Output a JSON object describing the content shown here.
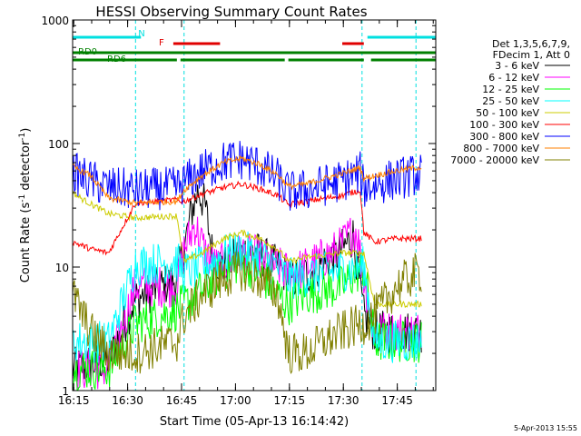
{
  "chart_data": {
    "type": "line",
    "title": "HESSI Observing Summary Count Rates",
    "xlabel": "Start Time (05-Apr-13 16:14:42)",
    "ylabel_main": "Count Rate (s",
    "ylabel_sup1": "-1",
    "ylabel_mid": " detector",
    "ylabel_sup2": "-1",
    "ylabel_end": ")",
    "y_scale": "log",
    "ylim": [
      1,
      1000
    ],
    "xlim_minutes": [
      0,
      101
    ],
    "x_tick_labels": [
      "16:15",
      "16:30",
      "16:45",
      "17:00",
      "17:15",
      "17:30",
      "17:45"
    ],
    "x_tick_minutes": [
      0.3,
      15.3,
      30.3,
      45.3,
      60.3,
      75.3,
      90.3
    ],
    "y_tick_labels": [
      "1",
      "10",
      "100",
      "1000"
    ],
    "y_tick_values": [
      1,
      10,
      100,
      1000
    ],
    "footer_date": "5-Apr-2013 15:55",
    "legend": {
      "header_line1": "Det 1,3,5,6,7,9,",
      "header_line2": "FDecim 1, Att 0",
      "placement": "right"
    },
    "flags": {
      "saa": {
        "label": "N",
        "color": "#00e0e0",
        "intervals": [
          [
            0,
            19
          ],
          [
            82,
            101
          ]
        ]
      },
      "flare": {
        "label": "F",
        "color": "#e00000",
        "intervals": [
          [
            28,
            41
          ],
          [
            75,
            81
          ]
        ]
      },
      "rd0": {
        "label": "RD0",
        "color": "#008000",
        "intervals": [
          [
            0,
            101
          ]
        ]
      },
      "rd6": {
        "label": "RD6",
        "color": "#008000",
        "intervals": [
          [
            0,
            29
          ],
          [
            30,
            59
          ],
          [
            60,
            81
          ],
          [
            83,
            101
          ]
        ]
      }
    },
    "vertical_markers": [
      {
        "minute": 17.5,
        "color": "#00e0e0"
      },
      {
        "minute": 31.0,
        "color": "#00e0e0"
      },
      {
        "minute": 80.5,
        "color": "#00e0e0"
      },
      {
        "minute": 95.5,
        "color": "#00e0e0"
      }
    ],
    "series": [
      {
        "name": "3 - 6 keV",
        "color": "#000000",
        "x": [
          0,
          10,
          17.5,
          29,
          31,
          33,
          35,
          37,
          39,
          42,
          45,
          50,
          55,
          59,
          61,
          66,
          70,
          73,
          76,
          78,
          81,
          84,
          90,
          96
        ],
        "y": [
          1.5,
          1.8,
          5.5,
          8,
          14,
          28,
          42,
          30,
          12,
          10,
          12,
          14,
          11,
          9,
          8,
          9,
          11,
          12,
          15,
          18,
          4,
          3,
          3,
          3
        ]
      },
      {
        "name": "6 - 12 keV",
        "color": "#ff00ff",
        "x": [
          0,
          10,
          17.5,
          29,
          31,
          34,
          37,
          40,
          43,
          47,
          52,
          57,
          60,
          65,
          70,
          74,
          77,
          79,
          81,
          84,
          90,
          96
        ],
        "y": [
          1.5,
          1.5,
          7,
          7,
          14,
          22,
          13,
          10,
          11,
          13,
          12,
          10,
          9,
          10,
          12,
          14,
          18,
          20,
          8,
          3,
          3,
          3
        ]
      },
      {
        "name": "12 - 25 keV",
        "color": "#00ff00",
        "x": [
          0,
          10,
          17.5,
          29,
          31,
          36,
          42,
          47,
          52,
          57,
          60,
          65,
          70,
          75,
          78,
          81,
          84,
          90,
          96
        ],
        "y": [
          1.5,
          1.5,
          3.5,
          4.5,
          5,
          6.5,
          9.5,
          11,
          9,
          6,
          5,
          6,
          6.5,
          7,
          8.5,
          10,
          2.5,
          2.5,
          2.5
        ]
      },
      {
        "name": "25 - 50 keV",
        "color": "#00ffff",
        "x": [
          0,
          10,
          17.5,
          29,
          31,
          36,
          42,
          47,
          52,
          57,
          60,
          65,
          70,
          75,
          81,
          84,
          90,
          96
        ],
        "y": [
          2.5,
          2.5,
          10.5,
          11,
          9,
          10,
          12.5,
          13.5,
          12,
          10,
          8,
          8.5,
          9,
          9.5,
          10,
          2.5,
          2.5,
          2.5
        ]
      },
      {
        "name": "50 - 100 keV",
        "color": "#cccc00",
        "x": [
          0,
          3,
          10,
          17.5,
          29,
          31,
          36,
          42,
          47,
          52,
          57,
          60,
          65,
          70,
          75,
          81,
          84,
          90,
          96
        ],
        "y": [
          40,
          35,
          27,
          25,
          26,
          11,
          13,
          17,
          19,
          17,
          14,
          11,
          12,
          12.5,
          13,
          13,
          5,
          5,
          5
        ]
      },
      {
        "name": "100 - 300 keV",
        "color": "#ff0000",
        "x": [
          0,
          5,
          10,
          17.5,
          29,
          31,
          36,
          42,
          47,
          52,
          57,
          60,
          65,
          70,
          75,
          80,
          81,
          84,
          90,
          96
        ],
        "y": [
          16,
          14,
          13,
          33,
          35,
          34,
          39,
          44,
          47,
          43,
          38,
          32,
          34,
          36,
          38,
          42,
          19,
          16,
          17,
          17
        ]
      },
      {
        "name": "300 - 800 keV",
        "color": "#0000ff",
        "x": [
          0,
          5,
          10,
          17.5,
          29,
          31,
          36,
          42,
          47,
          52,
          57,
          60,
          65,
          70,
          75,
          80,
          81,
          84,
          90,
          96
        ],
        "y": [
          58,
          50,
          44,
          42,
          44,
          48,
          60,
          71,
          75,
          65,
          52,
          40,
          42,
          46,
          50,
          58,
          44,
          46,
          52,
          56
        ]
      },
      {
        "name": "800 - 7000 keV",
        "color": "#ff8000",
        "x": [
          0,
          5,
          10,
          17.5,
          29,
          31,
          36,
          42,
          47,
          52,
          57,
          60,
          65,
          70,
          75,
          80,
          81,
          84,
          90,
          96
        ],
        "y": [
          65,
          55,
          36,
          33,
          34,
          42,
          55,
          70,
          76,
          68,
          56,
          45,
          47,
          52,
          57,
          64,
          52,
          55,
          60,
          64
        ]
      },
      {
        "name": "7000 - 20000 keV",
        "color": "#808000",
        "x": [
          0,
          5,
          10,
          17.5,
          29,
          31,
          36,
          42,
          47,
          52,
          57,
          60,
          65,
          70,
          75,
          81,
          84,
          90,
          96
        ],
        "y": [
          6,
          3,
          2,
          2,
          2.5,
          4,
          6,
          8,
          9.5,
          8,
          6,
          2,
          2,
          2.5,
          3,
          3.5,
          4,
          7,
          9
        ]
      }
    ]
  }
}
